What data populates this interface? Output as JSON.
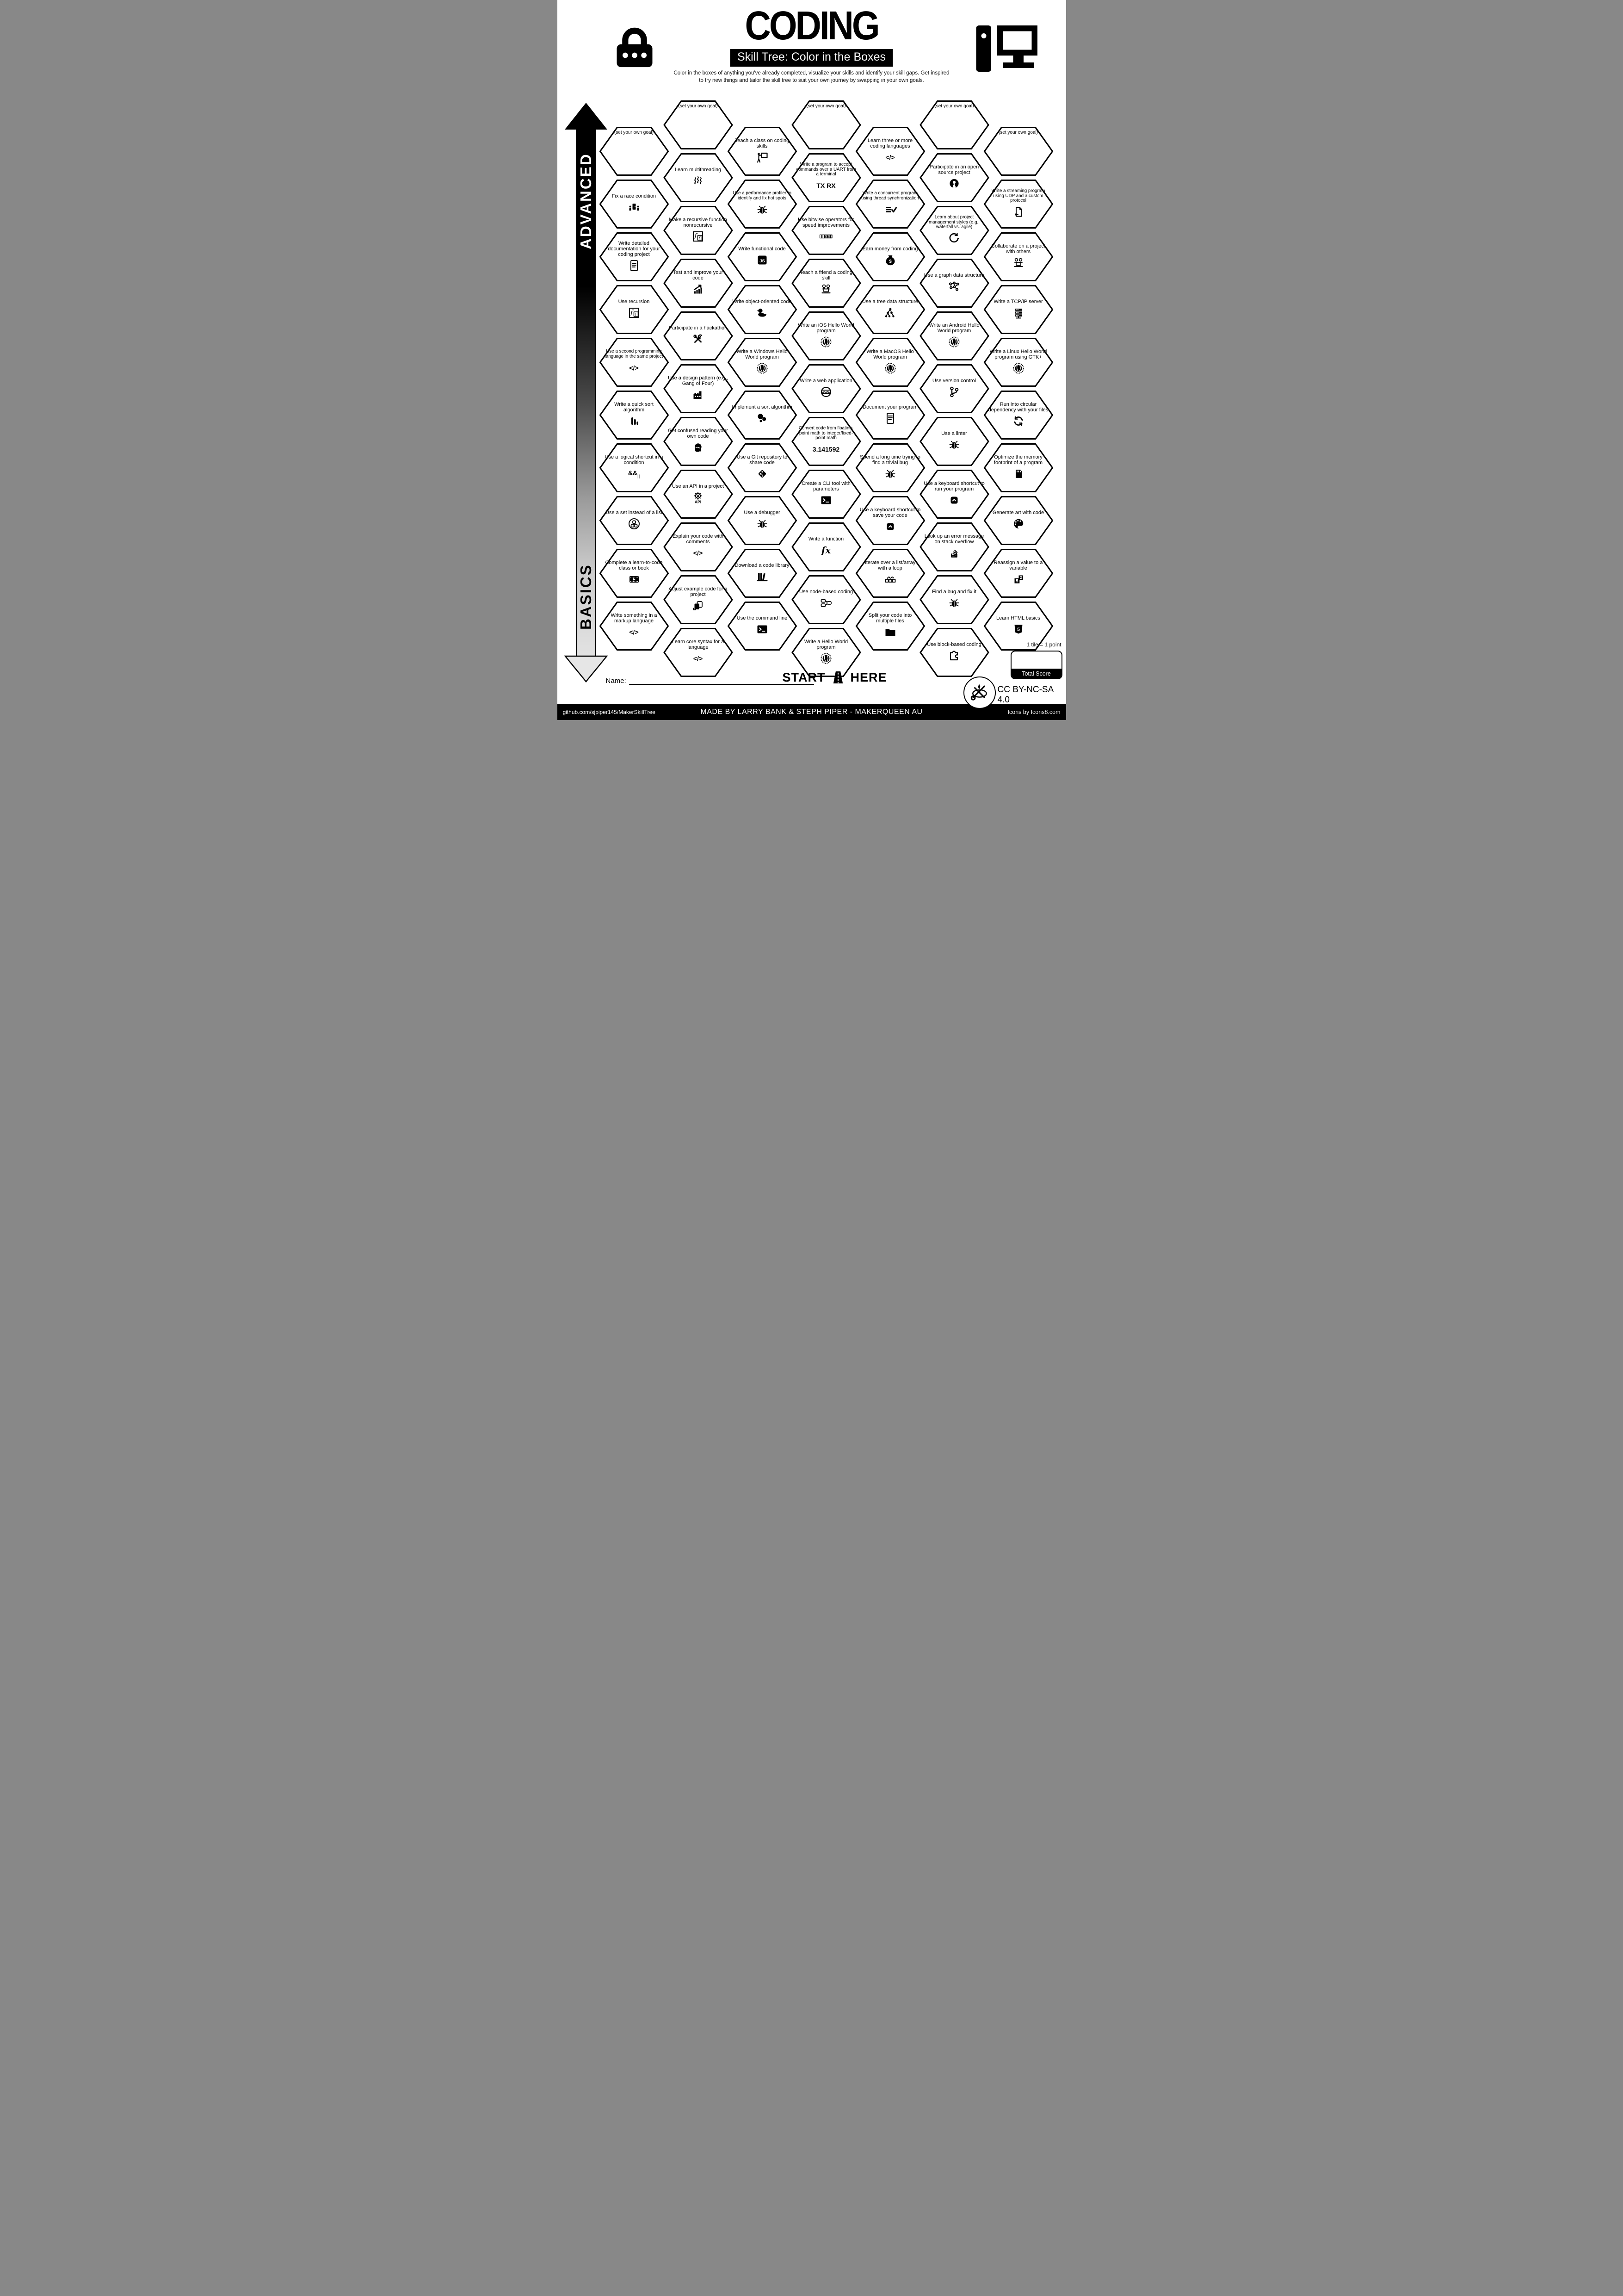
{
  "title": "CODING",
  "subtitle": "Skill Tree: Color in the Boxes",
  "blurb_line1": "Color in the boxes of anything you've already completed, visualize your skills and identify your skill gaps.  Get inspired",
  "blurb_line2": "to try new things and tailor the skill tree to suit your own journey by swapping in your own goals.",
  "axis": {
    "advanced": "ADVANCED",
    "basics": "BASICS"
  },
  "start_here": {
    "left": "START",
    "right": "HERE"
  },
  "name_label": "Name:",
  "scoring": {
    "note": "1 tile = 1 point",
    "box_label": "Total Score"
  },
  "license": "CC BY-NC-SA 4.0",
  "footer": {
    "left": "github.com/sjpiper145/MakerSkillTree",
    "center": "MADE BY LARRY BANK & STEPH PIPER  -  MAKERQUEEN AU",
    "right": "Icons by Icons8.com"
  },
  "columns": [
    {
      "tiles": [
        {
          "type": "goal",
          "label": "(set your own goal)",
          "icon": null
        },
        {
          "label": "Fix a race condition",
          "icon": "people-door"
        },
        {
          "label": "Write detailed documentation for your coding project",
          "icon": "document"
        },
        {
          "label": "Use recursion",
          "icon": "recursion"
        },
        {
          "label": "Use a second programming language in the same project",
          "icon": "code"
        },
        {
          "label": "Write a quick sort algorithm",
          "icon": "sort-bars"
        },
        {
          "label": "Use a logical shortcut in a condition",
          "icon": "logical-shortcut"
        },
        {
          "label": "Use a set instead of a list",
          "icon": "set-circles"
        },
        {
          "label": "Complete a learn-to-code class or book",
          "icon": "film-class"
        },
        {
          "label": "Write something in a markup language",
          "icon": "code"
        }
      ]
    },
    {
      "tiles": [
        {
          "type": "goal",
          "label": "(set your own goal)",
          "icon": null
        },
        {
          "label": "Learn multithreading",
          "icon": "wavy-threads"
        },
        {
          "label": "Make a recursive function nonrecursive",
          "icon": "recursion"
        },
        {
          "label": "Test and improve your code",
          "icon": "chart-up"
        },
        {
          "label": "Participate in a hackathon",
          "icon": "hack-tools"
        },
        {
          "label": "Use a design pattern (e.g., Gang of Four)",
          "icon": "factory"
        },
        {
          "label": "Get confused reading your own code",
          "icon": "facepalm"
        },
        {
          "label": "Use an API in a project",
          "icon": "api-gear"
        },
        {
          "label": "Explain your code with comments",
          "icon": "code"
        },
        {
          "label": "Adjust example code for a project",
          "icon": "copy-adjust"
        },
        {
          "label": "Learn core syntax for a language",
          "icon": "code"
        }
      ]
    },
    {
      "tiles": [
        {
          "label": "Teach a class on coding skills",
          "icon": "presenter-board"
        },
        {
          "label": "Use a performance profiler to identify and fix hot spots",
          "icon": "bug"
        },
        {
          "label": "Write functional code",
          "icon": "js-badge"
        },
        {
          "label": "Write object-oriented code",
          "icon": "rubber-duck"
        },
        {
          "label": "Write a Windows Hello World program",
          "icon": "hello-globe"
        },
        {
          "label": "Implement a sort algorithm",
          "icon": "sort-bubbles"
        },
        {
          "label": "Use a Git repository to share code",
          "icon": "git-repo"
        },
        {
          "label": "Use a debugger",
          "icon": "bug"
        },
        {
          "label": "Download a code library",
          "icon": "library-books"
        },
        {
          "label": "Use the command line",
          "icon": "terminal"
        }
      ]
    },
    {
      "tiles": [
        {
          "type": "goal",
          "label": "(set your own goal)",
          "icon": null
        },
        {
          "label": "Write a program to accept commands over a UART from a terminal",
          "icon": "uart-tx-rx"
        },
        {
          "label": "Use bitwise operators for speed improvements",
          "icon": "binary-cells"
        },
        {
          "label": "Teach a friend a coding skill",
          "icon": "pair-laptop"
        },
        {
          "label": "Write an iOS Hello World program",
          "icon": "hello-globe"
        },
        {
          "label": "Write a web application",
          "icon": "www-globe"
        },
        {
          "label": "Convert code from floating-point math to integer/fixed-point math",
          "icon": "pi-number"
        },
        {
          "label": "Create a CLI tool with parameters",
          "icon": "terminal"
        },
        {
          "label": "Write a function",
          "icon": "fx"
        },
        {
          "label": "Use node-based coding",
          "icon": "node-flow"
        },
        {
          "label": "Write a Hello World program",
          "icon": "hello-globe"
        }
      ]
    },
    {
      "tiles": [
        {
          "label": "Learn three or more coding languages",
          "icon": "code"
        },
        {
          "label": "Write a concurrent program using thread synchronization",
          "icon": "sync-check"
        },
        {
          "label": "Earn money from coding",
          "icon": "money-bag"
        },
        {
          "label": "Use a tree data structure",
          "icon": "tree-structure"
        },
        {
          "label": "Write a MacOS Hello World program",
          "icon": "hello-globe"
        },
        {
          "label": "Document your program",
          "icon": "document"
        },
        {
          "label": "Spend a long time trying to find a trivial bug",
          "icon": "bug"
        },
        {
          "label": "Use a keyboard shortcut to save your code",
          "icon": "keycap-shortcut"
        },
        {
          "label": "Iterate over a list/array with a loop",
          "icon": "loop-squares"
        },
        {
          "label": "Split your code into multiple files",
          "icon": "folder"
        }
      ]
    },
    {
      "tiles": [
        {
          "type": "goal",
          "label": "(set your own goal)",
          "icon": null
        },
        {
          "label": "Participate in an open source project",
          "icon": "open-source"
        },
        {
          "label": "Learn about project management styles (e.g., waterfall vs. agile)",
          "icon": "agile-cycle"
        },
        {
          "label": "Use a graph data structure",
          "icon": "graph-structure"
        },
        {
          "label": "Write an Android Hello World program",
          "icon": "hello-globe"
        },
        {
          "label": "Use version control",
          "icon": "git-branch"
        },
        {
          "label": "Use a linter",
          "icon": "bug"
        },
        {
          "label": "Use a keyboard shortcut to run your program",
          "icon": "keycap-shortcut"
        },
        {
          "label": "Look up an error message on stack overflow",
          "icon": "stack-overflow"
        },
        {
          "label": "Find a bug and fix it",
          "icon": "bug"
        },
        {
          "label": "Use block-based coding",
          "icon": "puzzle-block"
        }
      ]
    },
    {
      "tiles": [
        {
          "type": "goal",
          "label": "(set your own goal)",
          "icon": null
        },
        {
          "label": "Write a streaming program using UDP and a custom protocol",
          "icon": "doc-stream"
        },
        {
          "label": "Collaborate on a project with others",
          "icon": "pair-laptop"
        },
        {
          "label": "Write a TCP/IP server",
          "icon": "server-stack"
        },
        {
          "label": "Write a Linux Hello World program using GTK+",
          "icon": "hello-globe"
        },
        {
          "label": "Run into circular dependency with your files",
          "icon": "circular-refresh"
        },
        {
          "label": "Optimize the memory footprint of a program",
          "icon": "memory-card"
        },
        {
          "label": "Generate art with code",
          "icon": "palette"
        },
        {
          "label": "Reassign a value to a variable",
          "icon": "squares-52"
        },
        {
          "label": "Learn HTML basics",
          "icon": "html5-shield"
        }
      ]
    }
  ]
}
